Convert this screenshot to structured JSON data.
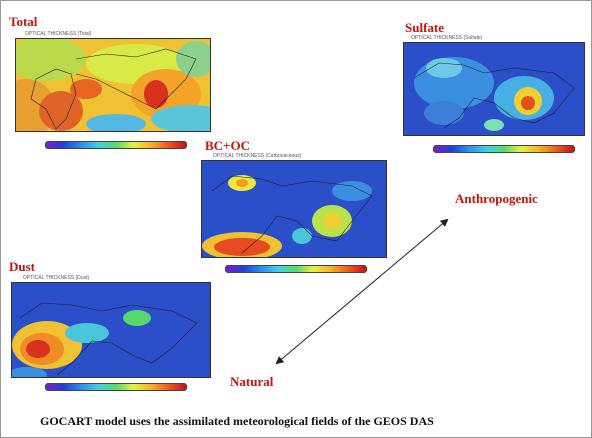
{
  "labels": {
    "total": "Total",
    "sulfate": "Sulfate",
    "bcoc": "BC+OC",
    "dust": "Dust",
    "anthropogenic": "Anthropogenic",
    "natural": "Natural"
  },
  "panels": {
    "total": {
      "subtitle": "OPTICAL THICKNESS (Total)"
    },
    "sulfate": {
      "subtitle": "OPTICAL THICKNESS (Sulfate)"
    },
    "bcoc": {
      "subtitle": "OPTICAL THICKNESS (Carbonaceous)"
    },
    "dust": {
      "subtitle": "OPTICAL THICKNESS (Dust)"
    }
  },
  "caption": "GOCART model uses the assimilated meteorological fields of the GEOS DAS",
  "colors": {
    "label_red": "#c0150f",
    "map_blue": "#2a4fc9",
    "colorbar_stops": [
      "#7a1fc9",
      "#2040d8",
      "#2b8ff0",
      "#3fd0e6",
      "#55d96b",
      "#e8f040",
      "#f6b126",
      "#ef5a1e",
      "#c8101a"
    ]
  },
  "icons": {
    "arrow": "double-headed-arrow"
  }
}
